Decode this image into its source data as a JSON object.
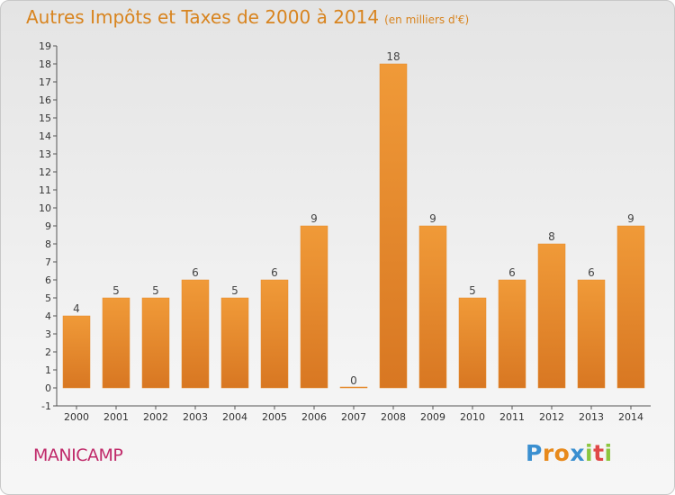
{
  "chart_data": {
    "type": "bar",
    "title": "Autres Impôts et Taxes de 2000 à 2014",
    "unit_label": "(en milliers d'€)",
    "categories": [
      "2000",
      "2001",
      "2002",
      "2003",
      "2004",
      "2005",
      "2006",
      "2007",
      "2008",
      "2009",
      "2010",
      "2011",
      "2012",
      "2013",
      "2014"
    ],
    "values": [
      4,
      5,
      5,
      6,
      5,
      6,
      9,
      0,
      18,
      9,
      5,
      6,
      8,
      6,
      9
    ],
    "ylim": [
      -1,
      19
    ],
    "y_ticks": [
      -1,
      0,
      1,
      2,
      3,
      4,
      5,
      6,
      7,
      8,
      9,
      10,
      11,
      12,
      13,
      14,
      15,
      16,
      17,
      18,
      19
    ],
    "bar_color": "#f09a38",
    "bar_color_dark": "#d87722",
    "grid": false
  },
  "location": "MANICAMP",
  "logo": {
    "letters": [
      "P",
      "r",
      "o",
      "x",
      "i",
      "t",
      "i"
    ],
    "colors": [
      "#3a8fd0",
      "#e88a1c",
      "#e88a1c",
      "#3a8fd0",
      "#8cc63f",
      "#e04848",
      "#8cc63f"
    ]
  }
}
